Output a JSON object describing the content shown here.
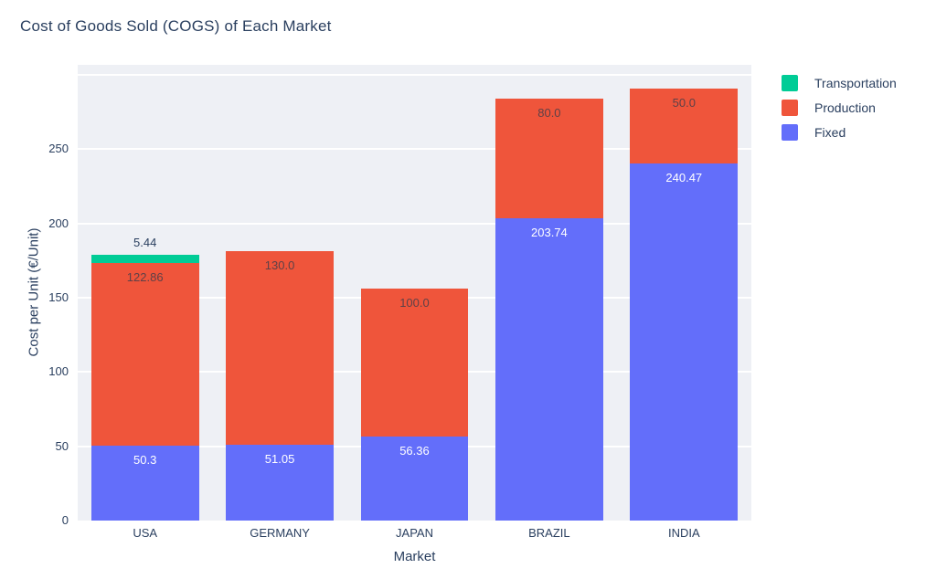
{
  "chart_data": {
    "type": "bar",
    "stacked": true,
    "title": "Cost of Goods Sold (COGS) of Each Market",
    "xlabel": "Market",
    "ylabel": "Cost per Unit (€/Unit)",
    "categories": [
      "USA",
      "GERMANY",
      "JAPAN",
      "BRAZIL",
      "INDIA"
    ],
    "series": [
      {
        "name": "Fixed",
        "color": "#636EFA",
        "label_color": "#ffffff",
        "values": [
          50.3,
          51.05,
          56.36,
          203.74,
          240.47
        ],
        "labels": [
          "50.3",
          "51.05",
          "56.36",
          "203.74",
          "240.47"
        ]
      },
      {
        "name": "Production",
        "color": "#EF553B",
        "label_color": "#5e4147",
        "values": [
          122.86,
          130.0,
          100.0,
          80.0,
          50.0
        ],
        "labels": [
          "122.86",
          "130.0",
          "100.0",
          "80.0",
          "50.0"
        ]
      },
      {
        "name": "Transportation",
        "color": "#00CC96",
        "label_color": "#2a3f5f",
        "values": [
          5.44,
          0,
          0,
          0,
          0
        ],
        "labels": [
          "5.44",
          "",
          "",
          "",
          ""
        ]
      }
    ],
    "legend": {
      "position": "top-right-outside",
      "items": [
        {
          "label": "Transportation",
          "color": "#00CC96"
        },
        {
          "label": "Production",
          "color": "#EF553B"
        },
        {
          "label": "Fixed",
          "color": "#636EFA"
        }
      ]
    },
    "y_ticks": [
      {
        "label": "0",
        "value": 0
      },
      {
        "label": "50",
        "value": 50
      },
      {
        "label": "100",
        "value": 100
      },
      {
        "label": "150",
        "value": 150
      },
      {
        "label": "200",
        "value": 200
      },
      {
        "label": "250",
        "value": 250
      }
    ],
    "gridline_values": [
      50,
      100,
      150,
      200,
      250,
      300
    ],
    "ylim": [
      0,
      306.7
    ],
    "grid": true,
    "plot_bg": "#EEF0F5",
    "grid_color": "#ffffff",
    "text_color": "#2a3f5f"
  }
}
